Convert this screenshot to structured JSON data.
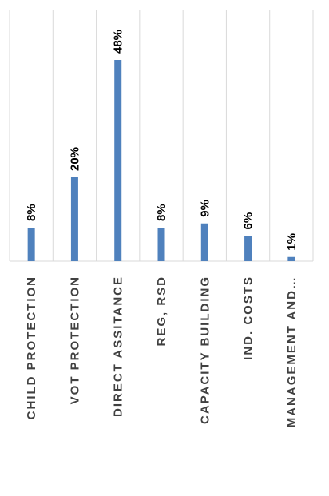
{
  "chart_data": {
    "type": "bar",
    "categories": [
      "CHILD PROTECTION",
      "VOT PROTECTION",
      "DIRECT ASSITANCE",
      "REG, RSD",
      "CAPACITY BUILDING",
      "IND. COSTS",
      "MANAGEMENT AND…"
    ],
    "values": [
      8,
      20,
      48,
      8,
      9,
      6,
      1
    ],
    "data_labels": [
      "8%",
      "20%",
      "48%",
      "8%",
      "9%",
      "6%",
      "1%"
    ],
    "unit": "%",
    "ylim": [
      0,
      50
    ],
    "grid": "vertical category separators",
    "legend": "none",
    "bar_color": "#4f81bd",
    "grid_color": "#d9d9d9",
    "label_color": "#404040"
  }
}
